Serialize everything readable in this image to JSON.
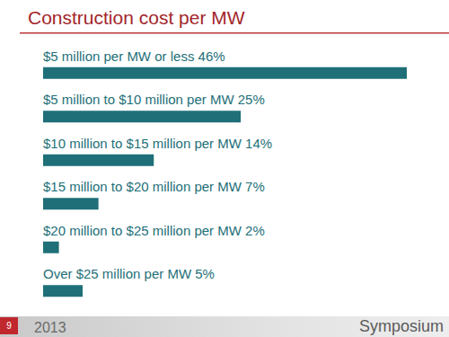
{
  "chart_data": {
    "type": "bar",
    "title": "Construction cost per MW",
    "orientation": "horizontal",
    "categories": [
      "$5 million per MW or less 46%",
      "$5 million to $10 million per MW 25%",
      "$10 million to $15 million per MW 14%",
      "$15 million to $20 million per MW 7%",
      "$20 million to $25 million per MW 2%",
      "Over $25 million per MW 5%"
    ],
    "values": [
      46,
      25,
      14,
      7,
      2,
      5
    ],
    "color": "#1e6f78",
    "xlim": [
      0,
      46
    ],
    "grid": false,
    "tick_labels": false
  },
  "footer": {
    "page": "9",
    "year": "2013",
    "brand": "Symposium"
  }
}
